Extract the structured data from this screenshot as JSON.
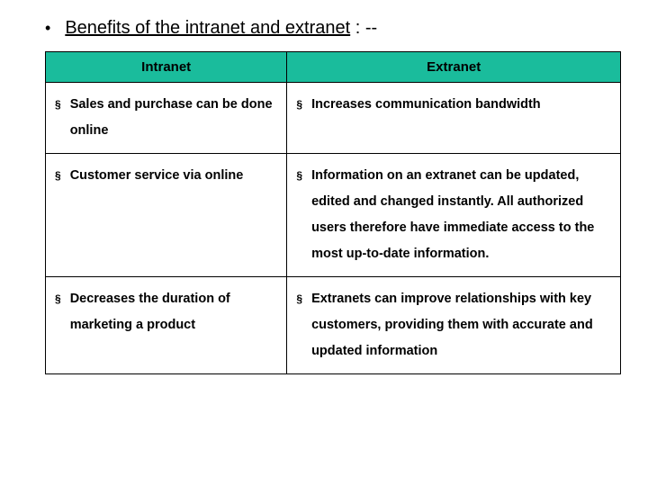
{
  "title": {
    "bullet": "•",
    "text": "Benefits of the intranet and extranet",
    "suffix": " : --"
  },
  "table": {
    "header_bg": "#1abc9c",
    "border_color": "#000000",
    "columns": [
      "Intranet",
      "Extranet"
    ],
    "rows": [
      {
        "left": "Sales and purchase can be done online",
        "right": "Increases communication bandwidth"
      },
      {
        "left": "Customer service via online",
        "right": "Information on an extranet can be updated, edited and changed instantly. All authorized users therefore have immediate access to the most up-to-date information."
      },
      {
        "left": "Decreases the duration of marketing a product",
        "right": "Extranets can improve relationships with key customers, providing them with accurate and updated information"
      }
    ],
    "item_bullet": "§"
  }
}
